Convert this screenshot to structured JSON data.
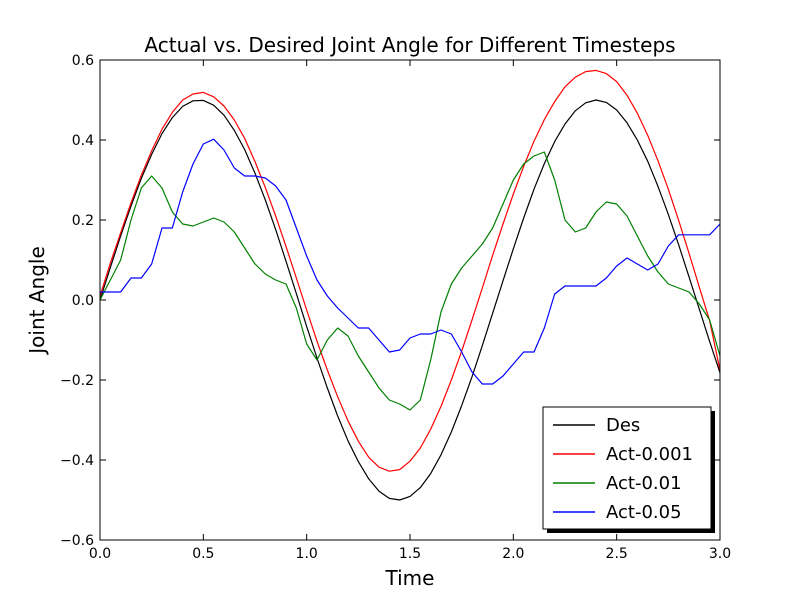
{
  "chart_data": {
    "type": "line",
    "title": "Actual vs. Desired Joint Angle for Different Timesteps",
    "xlabel": "Time",
    "ylabel": "Joint Angle",
    "xlim": [
      0.0,
      3.0
    ],
    "ylim": [
      -0.6,
      0.6
    ],
    "xticks": [
      0.0,
      0.5,
      1.0,
      1.5,
      2.0,
      2.5,
      3.0
    ],
    "xtick_labels": [
      "0.0",
      "0.5",
      "1.0",
      "1.5",
      "2.0",
      "2.5",
      "3.0"
    ],
    "yticks": [
      0.6,
      0.4,
      0.2,
      0.0,
      -0.2,
      -0.4,
      -0.6
    ],
    "ytick_labels": [
      "0.6",
      "0.4",
      "0.2",
      "0.0",
      "−0.2",
      "−0.4",
      "−0.6"
    ],
    "grid": false,
    "legend_position": "lower-right",
    "series": [
      {
        "name": "Des",
        "color": "#000000",
        "x": [
          0.0,
          0.05,
          0.1,
          0.15,
          0.2,
          0.25,
          0.3,
          0.35,
          0.4,
          0.45,
          0.5,
          0.55,
          0.6,
          0.65,
          0.7,
          0.75,
          0.8,
          0.85,
          0.9,
          0.95,
          1.0,
          1.05,
          1.1,
          1.15,
          1.2,
          1.25,
          1.3,
          1.35,
          1.4,
          1.45,
          1.5,
          1.55,
          1.6,
          1.65,
          1.7,
          1.75,
          1.8,
          1.85,
          1.9,
          1.95,
          2.0,
          2.05,
          2.1,
          2.15,
          2.2,
          2.25,
          2.3,
          2.35,
          2.4,
          2.45,
          2.5,
          2.55,
          2.6,
          2.65,
          2.7,
          2.75,
          2.8,
          2.85,
          2.9,
          2.95,
          3.0
        ],
        "y": [
          0.0,
          0.081,
          0.16,
          0.235,
          0.304,
          0.364,
          0.416,
          0.456,
          0.484,
          0.498,
          0.499,
          0.487,
          0.462,
          0.424,
          0.376,
          0.317,
          0.25,
          0.176,
          0.097,
          0.016,
          -0.066,
          -0.145,
          -0.22,
          -0.29,
          -0.352,
          -0.404,
          -0.447,
          -0.478,
          -0.496,
          -0.5,
          -0.491,
          -0.469,
          -0.434,
          -0.387,
          -0.33,
          -0.264,
          -0.192,
          -0.114,
          -0.033,
          0.048,
          0.128,
          0.205,
          0.277,
          0.341,
          0.396,
          0.44,
          0.473,
          0.493,
          0.5,
          0.494,
          0.475,
          0.443,
          0.4,
          0.347,
          0.284,
          0.214,
          0.138,
          0.058,
          -0.023,
          -0.104,
          -0.182
        ]
      },
      {
        "name": "Act-0.001",
        "color": "#ff0000",
        "x": [
          0.0,
          0.05,
          0.1,
          0.15,
          0.2,
          0.25,
          0.3,
          0.35,
          0.4,
          0.45,
          0.5,
          0.55,
          0.6,
          0.65,
          0.7,
          0.75,
          0.8,
          0.85,
          0.9,
          0.95,
          1.0,
          1.05,
          1.1,
          1.15,
          1.2,
          1.25,
          1.3,
          1.35,
          1.4,
          1.45,
          1.5,
          1.55,
          1.6,
          1.65,
          1.7,
          1.75,
          1.8,
          1.85,
          1.9,
          1.95,
          2.0,
          2.05,
          2.1,
          2.15,
          2.2,
          2.25,
          2.3,
          2.35,
          2.4,
          2.45,
          2.5,
          2.55,
          2.6,
          2.65,
          2.7,
          2.75,
          2.8,
          2.85,
          2.9,
          2.95,
          3.0
        ],
        "y": [
          0.01,
          0.092,
          0.168,
          0.243,
          0.312,
          0.373,
          0.427,
          0.469,
          0.5,
          0.515,
          0.519,
          0.508,
          0.485,
          0.45,
          0.404,
          0.346,
          0.281,
          0.21,
          0.134,
          0.055,
          -0.025,
          -0.103,
          -0.175,
          -0.242,
          -0.302,
          -0.353,
          -0.393,
          -0.418,
          -0.428,
          -0.424,
          -0.403,
          -0.37,
          -0.323,
          -0.266,
          -0.2,
          -0.128,
          -0.05,
          0.03,
          0.112,
          0.19,
          0.265,
          0.334,
          0.397,
          0.451,
          0.496,
          0.533,
          0.557,
          0.571,
          0.574,
          0.566,
          0.546,
          0.512,
          0.467,
          0.412,
          0.348,
          0.277,
          0.199,
          0.117,
          0.032,
          -0.052,
          -0.176
        ]
      },
      {
        "name": "Act-0.01",
        "color": "#008000",
        "x": [
          0.0,
          0.05,
          0.1,
          0.15,
          0.2,
          0.25,
          0.3,
          0.35,
          0.4,
          0.45,
          0.5,
          0.55,
          0.6,
          0.65,
          0.7,
          0.75,
          0.8,
          0.85,
          0.9,
          0.95,
          1.0,
          1.05,
          1.1,
          1.15,
          1.2,
          1.25,
          1.3,
          1.35,
          1.4,
          1.45,
          1.5,
          1.55,
          1.6,
          1.65,
          1.7,
          1.75,
          1.8,
          1.85,
          1.9,
          1.95,
          2.0,
          2.05,
          2.1,
          2.15,
          2.2,
          2.25,
          2.3,
          2.35,
          2.4,
          2.45,
          2.5,
          2.55,
          2.6,
          2.65,
          2.7,
          2.75,
          2.8,
          2.85,
          2.9,
          2.95,
          3.0
        ],
        "y": [
          0.0,
          0.05,
          0.1,
          0.2,
          0.28,
          0.31,
          0.28,
          0.22,
          0.19,
          0.185,
          0.195,
          0.205,
          0.195,
          0.17,
          0.13,
          0.09,
          0.065,
          0.05,
          0.04,
          -0.02,
          -0.11,
          -0.15,
          -0.1,
          -0.07,
          -0.09,
          -0.14,
          -0.18,
          -0.22,
          -0.25,
          -0.26,
          -0.275,
          -0.25,
          -0.15,
          -0.03,
          0.04,
          0.08,
          0.11,
          0.14,
          0.18,
          0.24,
          0.3,
          0.34,
          0.36,
          0.37,
          0.3,
          0.2,
          0.17,
          0.18,
          0.22,
          0.245,
          0.24,
          0.21,
          0.16,
          0.11,
          0.07,
          0.04,
          0.03,
          0.02,
          -0.01,
          -0.05,
          -0.14
        ]
      },
      {
        "name": "Act-0.05",
        "color": "#0000ff",
        "x": [
          0.0,
          0.05,
          0.1,
          0.15,
          0.2,
          0.25,
          0.3,
          0.35,
          0.4,
          0.45,
          0.5,
          0.55,
          0.6,
          0.65,
          0.7,
          0.75,
          0.8,
          0.85,
          0.9,
          0.95,
          1.0,
          1.05,
          1.1,
          1.15,
          1.2,
          1.25,
          1.3,
          1.35,
          1.4,
          1.45,
          1.5,
          1.55,
          1.6,
          1.65,
          1.7,
          1.75,
          1.8,
          1.85,
          1.9,
          1.95,
          2.0,
          2.05,
          2.1,
          2.15,
          2.2,
          2.25,
          2.3,
          2.35,
          2.4,
          2.45,
          2.5,
          2.55,
          2.6,
          2.65,
          2.7,
          2.75,
          2.8,
          2.85,
          2.9,
          2.95,
          3.0
        ],
        "y": [
          0.02,
          0.02,
          0.02,
          0.055,
          0.055,
          0.09,
          0.18,
          0.18,
          0.27,
          0.34,
          0.39,
          0.402,
          0.375,
          0.33,
          0.31,
          0.31,
          0.305,
          0.285,
          0.25,
          0.18,
          0.11,
          0.05,
          0.01,
          -0.02,
          -0.045,
          -0.07,
          -0.07,
          -0.1,
          -0.13,
          -0.125,
          -0.095,
          -0.085,
          -0.085,
          -0.075,
          -0.085,
          -0.13,
          -0.18,
          -0.21,
          -0.21,
          -0.19,
          -0.16,
          -0.13,
          -0.13,
          -0.07,
          0.015,
          0.035,
          0.035,
          0.035,
          0.035,
          0.055,
          0.085,
          0.105,
          0.09,
          0.075,
          0.09,
          0.135,
          0.163,
          0.163,
          0.163,
          0.163,
          0.19
        ]
      }
    ]
  }
}
